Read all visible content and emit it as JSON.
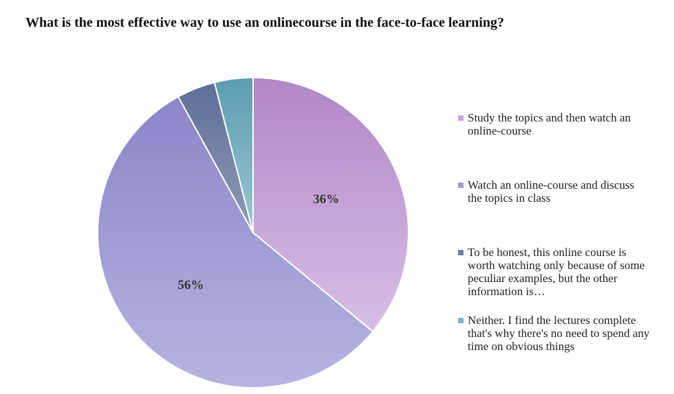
{
  "chart_data": {
    "type": "pie",
    "title": "What is the most effective way to use an online\u0011course in the face-to-face learning?",
    "categories": [
      "Study the topics and then watch an\nonline-course",
      "Watch an online-course and discuss\nthe topics in class",
      "To be honest, this online course is\nworth watching only because of some\npeculiar examples, but the other\ninformation is…",
      "Neither. I find the lectures complete\nthat's why there's no need to spend any\ntime on obvious things"
    ],
    "values": [
      36,
      56,
      4,
      4
    ],
    "data_labels": [
      "36%",
      "56%",
      "",
      ""
    ],
    "colors": [
      [
        "#b086c8",
        "#d8bfe4"
      ],
      [
        "#8a86c8",
        "#b6b4e0"
      ],
      [
        "#5f6e96",
        "#8d9ab8"
      ],
      [
        "#5c9cb0",
        "#9cc7d4"
      ]
    ],
    "legend_colors": [
      "#c9a6dc",
      "#9f9cd6",
      "#6f7fa4",
      "#7fb6c6"
    ],
    "start_angle_deg": 0,
    "direction": "clockwise",
    "legend_position": "right"
  }
}
